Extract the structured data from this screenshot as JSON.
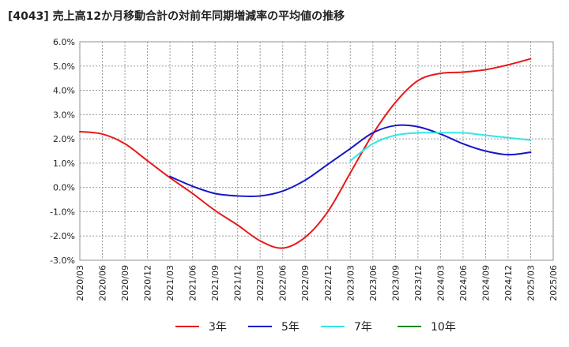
{
  "chart_data": {
    "type": "line",
    "title": "[4043]  売上高12か月移動合計の対前年同期増減率の平均値の推移",
    "xlabel": "",
    "ylabel": "",
    "y_ticks": [
      "6.0%",
      "5.0%",
      "4.0%",
      "3.0%",
      "2.0%",
      "1.0%",
      "0.0%",
      "-1.0%",
      "-2.0%",
      "-3.0%"
    ],
    "ylim": [
      -3.0,
      6.0
    ],
    "x_ticks": [
      "2020/03",
      "2020/06",
      "2020/09",
      "2020/12",
      "2021/03",
      "2021/06",
      "2021/09",
      "2021/12",
      "2022/03",
      "2022/06",
      "2022/09",
      "2022/12",
      "2023/03",
      "2023/06",
      "2023/09",
      "2023/12",
      "2024/03",
      "2024/06",
      "2024/09",
      "2024/12",
      "2025/03",
      "2025/06"
    ],
    "grid": true,
    "legend_position": "bottom",
    "series": [
      {
        "name": "3年",
        "color": "#e8191c",
        "points": [
          [
            "2020/03",
            2.3
          ],
          [
            "2020/06",
            2.2
          ],
          [
            "2020/09",
            1.8
          ],
          [
            "2020/12",
            1.1
          ],
          [
            "2021/03",
            0.4
          ],
          [
            "2021/06",
            -0.25
          ],
          [
            "2021/09",
            -0.95
          ],
          [
            "2021/12",
            -1.55
          ],
          [
            "2022/03",
            -2.2
          ],
          [
            "2022/06",
            -2.5
          ],
          [
            "2022/09",
            -2.05
          ],
          [
            "2022/12",
            -1.0
          ],
          [
            "2023/03",
            0.6
          ],
          [
            "2023/06",
            2.2
          ],
          [
            "2023/09",
            3.5
          ],
          [
            "2023/12",
            4.4
          ],
          [
            "2024/03",
            4.7
          ],
          [
            "2024/06",
            4.75
          ],
          [
            "2024/09",
            4.85
          ],
          [
            "2024/12",
            5.05
          ],
          [
            "2025/03",
            5.3
          ]
        ]
      },
      {
        "name": "5年",
        "color": "#1515c8",
        "points": [
          [
            "2021/03",
            0.45
          ],
          [
            "2021/06",
            0.05
          ],
          [
            "2021/09",
            -0.25
          ],
          [
            "2021/12",
            -0.35
          ],
          [
            "2022/03",
            -0.35
          ],
          [
            "2022/06",
            -0.15
          ],
          [
            "2022/09",
            0.3
          ],
          [
            "2022/12",
            0.95
          ],
          [
            "2023/03",
            1.6
          ],
          [
            "2023/06",
            2.25
          ],
          [
            "2023/09",
            2.55
          ],
          [
            "2023/12",
            2.5
          ],
          [
            "2024/03",
            2.2
          ],
          [
            "2024/06",
            1.8
          ],
          [
            "2024/09",
            1.5
          ],
          [
            "2024/12",
            1.35
          ],
          [
            "2025/03",
            1.45
          ]
        ]
      },
      {
        "name": "7年",
        "color": "#33e5e5",
        "points": [
          [
            "2023/03",
            1.1
          ],
          [
            "2023/06",
            1.8
          ],
          [
            "2023/09",
            2.15
          ],
          [
            "2023/12",
            2.25
          ],
          [
            "2024/03",
            2.25
          ],
          [
            "2024/06",
            2.25
          ],
          [
            "2024/09",
            2.15
          ],
          [
            "2024/12",
            2.05
          ],
          [
            "2025/03",
            1.95
          ]
        ]
      },
      {
        "name": "10年",
        "color": "#1a8a1a",
        "points": []
      }
    ]
  }
}
